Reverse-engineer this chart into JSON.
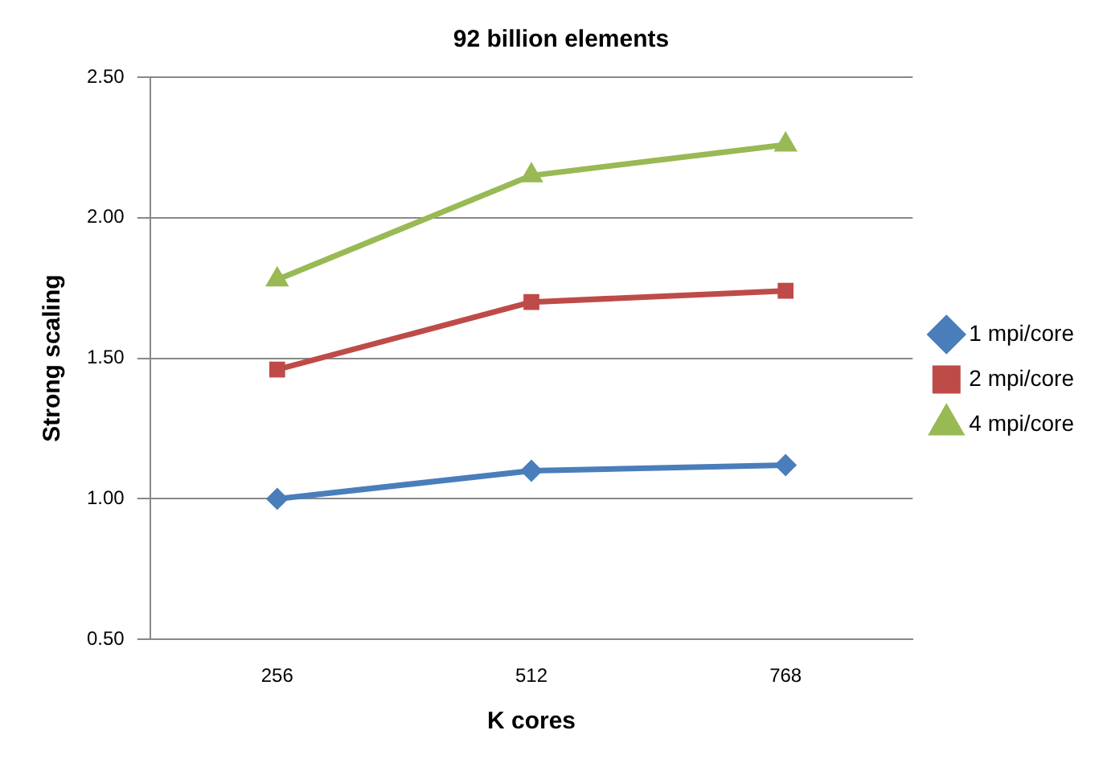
{
  "chart_data": {
    "type": "line",
    "title": "92 billion elements",
    "xlabel": "K cores",
    "ylabel": "Strong scaling",
    "categories": [
      "256",
      "512",
      "768"
    ],
    "series": [
      {
        "name": "1 mpi/core",
        "color": "#4a7ebb",
        "marker": "diamond",
        "values": [
          1.0,
          1.1,
          1.12
        ]
      },
      {
        "name": "2 mpi/core",
        "color": "#be4b48",
        "marker": "square",
        "values": [
          1.46,
          1.7,
          1.74
        ]
      },
      {
        "name": "4 mpi/core",
        "color": "#98b954",
        "marker": "triangle",
        "values": [
          1.78,
          2.15,
          2.26
        ]
      }
    ],
    "ylim": [
      0.5,
      2.5
    ],
    "yticks": [
      {
        "value": 0.5,
        "label": "0.50"
      },
      {
        "value": 1,
        "label": "1.00"
      },
      {
        "value": 1.5,
        "label": "1.50"
      },
      {
        "value": 2,
        "label": "2.00"
      },
      {
        "value": 2.5,
        "label": "2.50"
      }
    ],
    "grid": "y",
    "legend": "right",
    "line_style": "solid"
  }
}
